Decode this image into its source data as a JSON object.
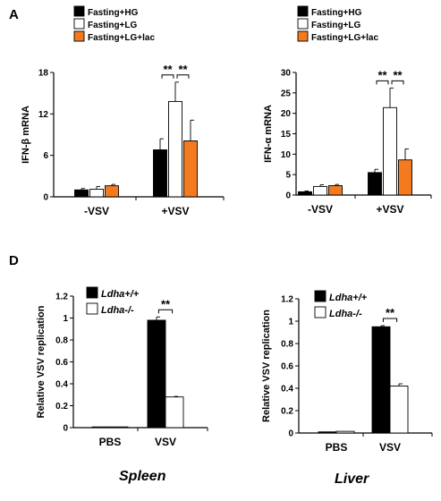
{
  "panels": [
    {
      "letter": "A"
    },
    {
      "letter": "D"
    }
  ],
  "colors": {
    "black": "#000000",
    "white": "#ffffff",
    "orange": "#f47a20"
  },
  "captions": [
    "Spleen",
    "Liver"
  ],
  "chart_data": [
    {
      "type": "bar",
      "ylabel": "IFN-β mRNA",
      "ylim": [
        0,
        18
      ],
      "yticks": [
        "0",
        "6",
        "12",
        "18"
      ],
      "categories": [
        "-VSV",
        "+VSV"
      ],
      "legend_position": "top",
      "series": [
        {
          "name": "Fasting+HG",
          "color": "#000000",
          "values": [
            1.0,
            6.8
          ],
          "errors": [
            0.2,
            1.6
          ]
        },
        {
          "name": "Fasting+LG",
          "color": "#ffffff",
          "values": [
            1.1,
            13.8
          ],
          "errors": [
            0.4,
            2.8
          ]
        },
        {
          "name": "Fasting+LG+lac",
          "color": "#f47a20",
          "values": [
            1.6,
            8.1
          ],
          "errors": [
            0.2,
            3.0
          ]
        }
      ],
      "significance": [
        {
          "category": 1,
          "from": 0,
          "to": 1,
          "label": "**"
        },
        {
          "category": 1,
          "from": 1,
          "to": 2,
          "label": "**"
        }
      ]
    },
    {
      "type": "bar",
      "ylabel": "IFN-α mRNA",
      "ylim": [
        0,
        30
      ],
      "yticks": [
        "0",
        "5",
        "10",
        "15",
        "20",
        "25",
        "30"
      ],
      "categories": [
        "-VSV",
        "+VSV"
      ],
      "legend_position": "top",
      "series": [
        {
          "name": "Fasting+HG",
          "color": "#000000",
          "values": [
            0.8,
            5.5
          ],
          "errors": [
            0.2,
            0.8
          ]
        },
        {
          "name": "Fasting+LG",
          "color": "#ffffff",
          "values": [
            2.1,
            21.4
          ],
          "errors": [
            0.4,
            4.8
          ]
        },
        {
          "name": "Fasting+LG+lac",
          "color": "#f47a20",
          "values": [
            2.3,
            8.6
          ],
          "errors": [
            0.3,
            2.7
          ]
        }
      ],
      "significance": [
        {
          "category": 1,
          "from": 0,
          "to": 1,
          "label": "**"
        },
        {
          "category": 1,
          "from": 1,
          "to": 2,
          "label": "**"
        }
      ]
    },
    {
      "type": "bar",
      "ylabel": "Relative VSV replication",
      "ylim": [
        0,
        1.2
      ],
      "yticks": [
        "0",
        "0.2",
        "0.4",
        "0.6",
        "0.8",
        "1",
        "1.2"
      ],
      "categories": [
        "PBS",
        "VSV"
      ],
      "legend_position": "top-left",
      "legend_italic": true,
      "series": [
        {
          "name": "Ldha+/+",
          "color": "#000000",
          "values": [
            0.0,
            0.98
          ],
          "errors": [
            0.0,
            0.03
          ]
        },
        {
          "name": "Ldha-/-",
          "color": "#ffffff",
          "values": [
            0.0,
            0.28
          ],
          "errors": [
            0.0,
            0.005
          ]
        }
      ],
      "significance": [
        {
          "category": 1,
          "from": 0,
          "to": 1,
          "label": "**"
        }
      ]
    },
    {
      "type": "bar",
      "ylabel": "Relative VSV replication",
      "ylim": [
        0,
        1.2
      ],
      "yticks": [
        "0",
        "0.2",
        "0.4",
        "0.6",
        "0.8",
        "1",
        "1.2"
      ],
      "categories": [
        "PBS",
        "VSV"
      ],
      "legend_position": "top-left",
      "legend_italic": true,
      "series": [
        {
          "name": "Ldha+/+",
          "color": "#000000",
          "values": [
            0.01,
            0.95
          ],
          "errors": [
            0.0,
            0.01
          ]
        },
        {
          "name": "Ldha-/-",
          "color": "#ffffff",
          "values": [
            0.015,
            0.42
          ],
          "errors": [
            0.0,
            0.02
          ]
        }
      ],
      "significance": [
        {
          "category": 1,
          "from": 0,
          "to": 1,
          "label": "**"
        }
      ]
    }
  ]
}
